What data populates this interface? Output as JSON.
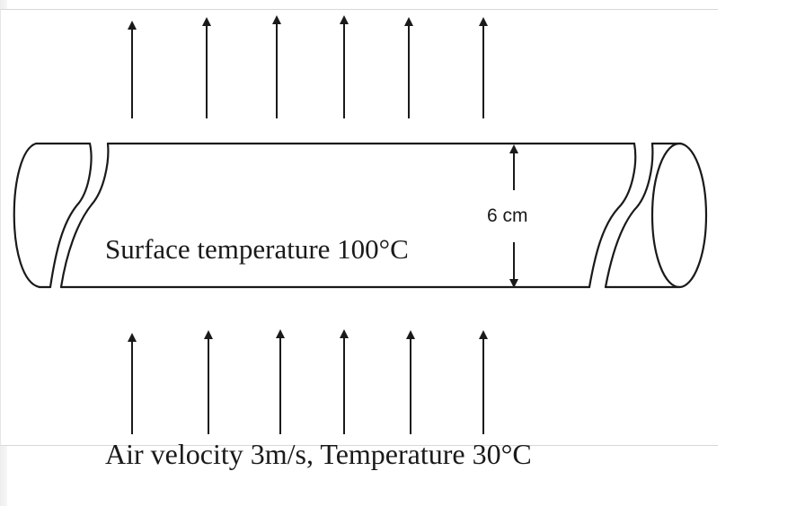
{
  "diagram": {
    "surface_label": "Surface temperature 100°C",
    "diameter_label": "6 cm",
    "airflow_label": "Air velocity 3m/s, Temperature 30°C",
    "stroke_color": "#1a1a1a",
    "fill_color": "#ffffff",
    "arrow_direction": "up",
    "upper_arrow_count": 6,
    "lower_arrow_count": 6
  }
}
